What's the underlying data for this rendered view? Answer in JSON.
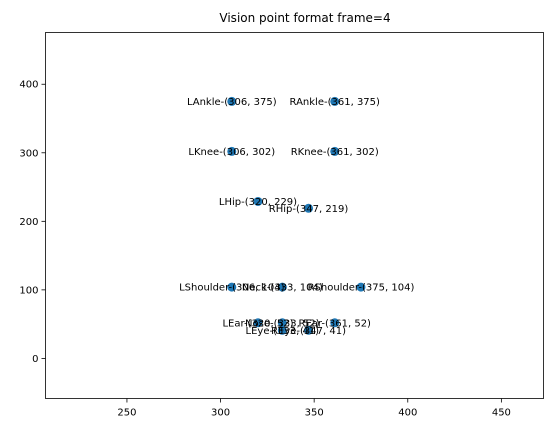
{
  "chart_data": {
    "type": "scatter",
    "title": "Vision point format frame=4",
    "xlabel": "",
    "ylabel": "",
    "xlim": [
      206.5,
      472.5
    ],
    "ylim": [
      -58.5,
      475.5
    ],
    "x_ticks": [
      250,
      300,
      350,
      400,
      450
    ],
    "y_ticks": [
      0,
      100,
      200,
      300,
      400
    ],
    "grid": false,
    "marker_color": "#1f77b4",
    "points": [
      {
        "name": "Nose",
        "x": 333,
        "y": 52,
        "label": "Nose-(333, 52)"
      },
      {
        "name": "Neck",
        "x": 333,
        "y": 104,
        "label": "Neck-(333, 104)"
      },
      {
        "name": "RShoulder",
        "x": 375,
        "y": 104,
        "label": "RShoulder-(375, 104)"
      },
      {
        "name": "LShoulder",
        "x": 306,
        "y": 104,
        "label": "LShoulder-(306, 104)"
      },
      {
        "name": "RHip",
        "x": 347,
        "y": 219,
        "label": "RHip-(347, 219)"
      },
      {
        "name": "LHip",
        "x": 320,
        "y": 229,
        "label": "LHip-(320, 229)"
      },
      {
        "name": "RKnee",
        "x": 361,
        "y": 302,
        "label": "RKnee-(361, 302)"
      },
      {
        "name": "LKnee",
        "x": 306,
        "y": 302,
        "label": "LKnee-(306, 302)"
      },
      {
        "name": "RAnkle",
        "x": 361,
        "y": 375,
        "label": "RAnkle-(361, 375)"
      },
      {
        "name": "LAnkle",
        "x": 306,
        "y": 375,
        "label": "LAnkle-(306, 375)"
      },
      {
        "name": "REye",
        "x": 347,
        "y": 41,
        "label": "REye-(347, 41)"
      },
      {
        "name": "LEye",
        "x": 333,
        "y": 41,
        "label": "LEye-(333, 41)"
      },
      {
        "name": "REar",
        "x": 361,
        "y": 52,
        "label": "REar-(361, 52)"
      },
      {
        "name": "LEar",
        "x": 320,
        "y": 52,
        "label": "LEar-(320, 52)"
      }
    ]
  }
}
